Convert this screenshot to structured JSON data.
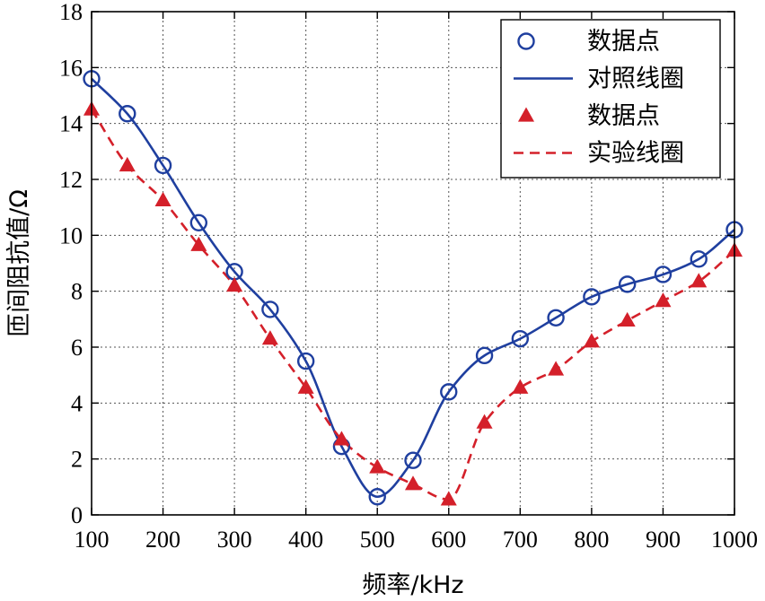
{
  "chart_data": {
    "type": "line",
    "xlabel": "频率/kHz",
    "ylabel": "匝间阻抗值/Ω",
    "xlim": [
      100,
      1000
    ],
    "ylim": [
      0,
      18
    ],
    "xticks": [
      "100",
      "200",
      "300",
      "400",
      "500",
      "600",
      "700",
      "800",
      "900",
      "1000"
    ],
    "yticks": [
      "0",
      "2",
      "4",
      "6",
      "8",
      "10",
      "12",
      "14",
      "16",
      "18"
    ],
    "grid": true,
    "legend_position": "top-right",
    "x": [
      100,
      150,
      200,
      250,
      300,
      350,
      400,
      450,
      500,
      550,
      600,
      650,
      700,
      750,
      800,
      850,
      900,
      950,
      1000
    ],
    "series": [
      {
        "name": "数据点",
        "style": "circle-markers",
        "color": "#1f3f9f",
        "values": [
          15.6,
          14.35,
          12.5,
          10.45,
          8.7,
          7.35,
          5.5,
          2.45,
          0.65,
          1.95,
          4.4,
          5.7,
          6.3,
          7.05,
          7.8,
          8.25,
          8.6,
          9.15,
          10.2
        ]
      },
      {
        "name": "对照线圈",
        "style": "solid-line",
        "color": "#1f3f9f",
        "values": [
          15.6,
          14.35,
          12.5,
          10.45,
          8.7,
          7.35,
          5.5,
          2.45,
          0.65,
          1.95,
          4.4,
          5.7,
          6.3,
          7.05,
          7.8,
          8.25,
          8.6,
          9.15,
          10.2
        ]
      },
      {
        "name": "数据点",
        "style": "triangle-markers",
        "color": "#d4202a",
        "values": [
          14.5,
          12.5,
          11.25,
          9.65,
          8.2,
          6.3,
          4.55,
          2.7,
          1.7,
          1.1,
          0.55,
          3.3,
          4.55,
          5.2,
          6.2,
          6.95,
          7.65,
          8.35,
          9.45
        ]
      },
      {
        "name": "实验线圈",
        "style": "dashed-line",
        "color": "#d4202a",
        "values": [
          14.5,
          12.5,
          11.25,
          9.65,
          8.2,
          6.3,
          4.55,
          2.7,
          1.7,
          1.1,
          0.55,
          3.3,
          4.55,
          5.2,
          6.2,
          6.95,
          7.65,
          8.35,
          9.45
        ]
      }
    ]
  }
}
